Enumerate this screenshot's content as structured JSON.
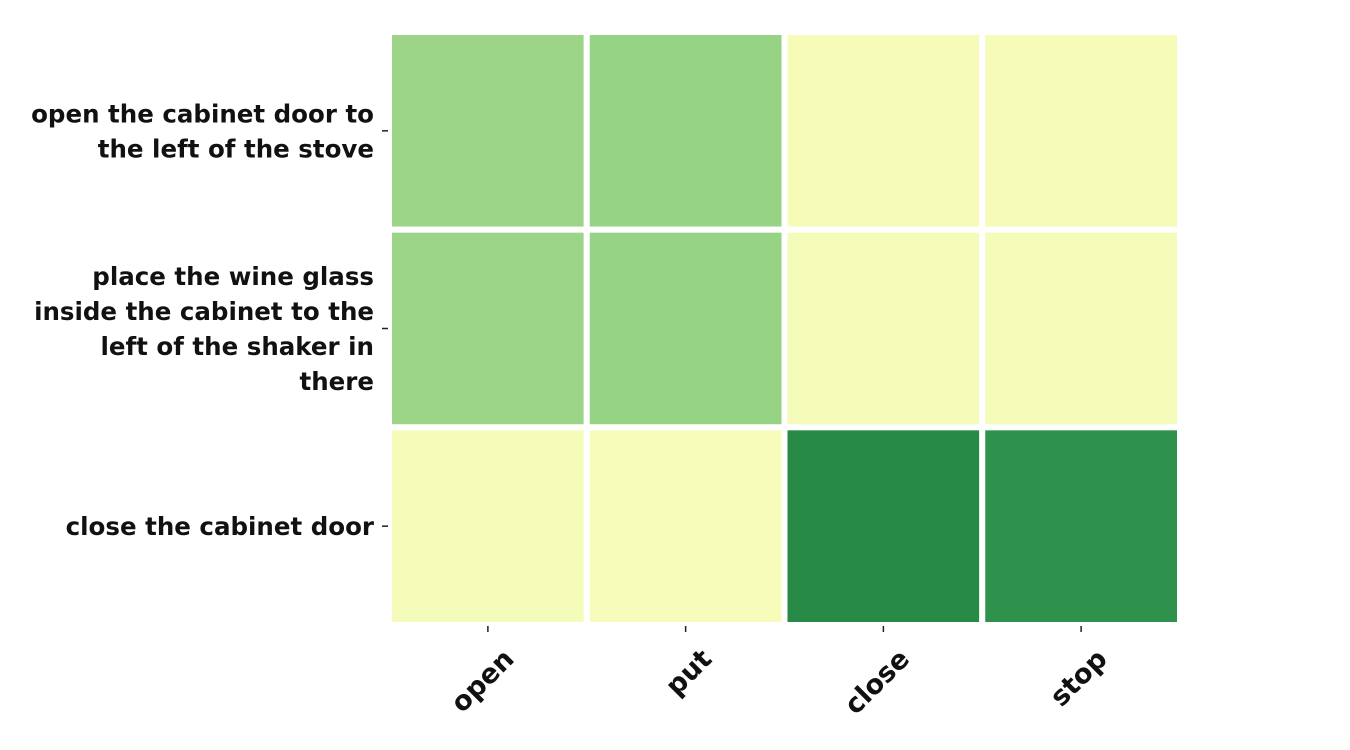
{
  "chart_data": {
    "type": "heatmap",
    "title": "",
    "xlabel": "",
    "ylabel": "",
    "x_categories": [
      "open",
      "put",
      "close",
      "stop"
    ],
    "y_categories": [
      [
        "open the cabinet door to",
        "the left of the stove"
      ],
      [
        "place the wine glass",
        "inside the cabinet to the",
        "left of the shaker in",
        "there"
      ],
      [
        "close the cabinet door"
      ]
    ],
    "values": [
      [
        0.47,
        0.49,
        0.015,
        0.015
      ],
      [
        0.47,
        0.49,
        0.02,
        0.02
      ],
      [
        0.02,
        0.005,
        0.97,
        0.93
      ]
    ],
    "value_range": [
      0,
      1
    ],
    "colormap": "YlGn",
    "grid": false,
    "legend": "none"
  }
}
